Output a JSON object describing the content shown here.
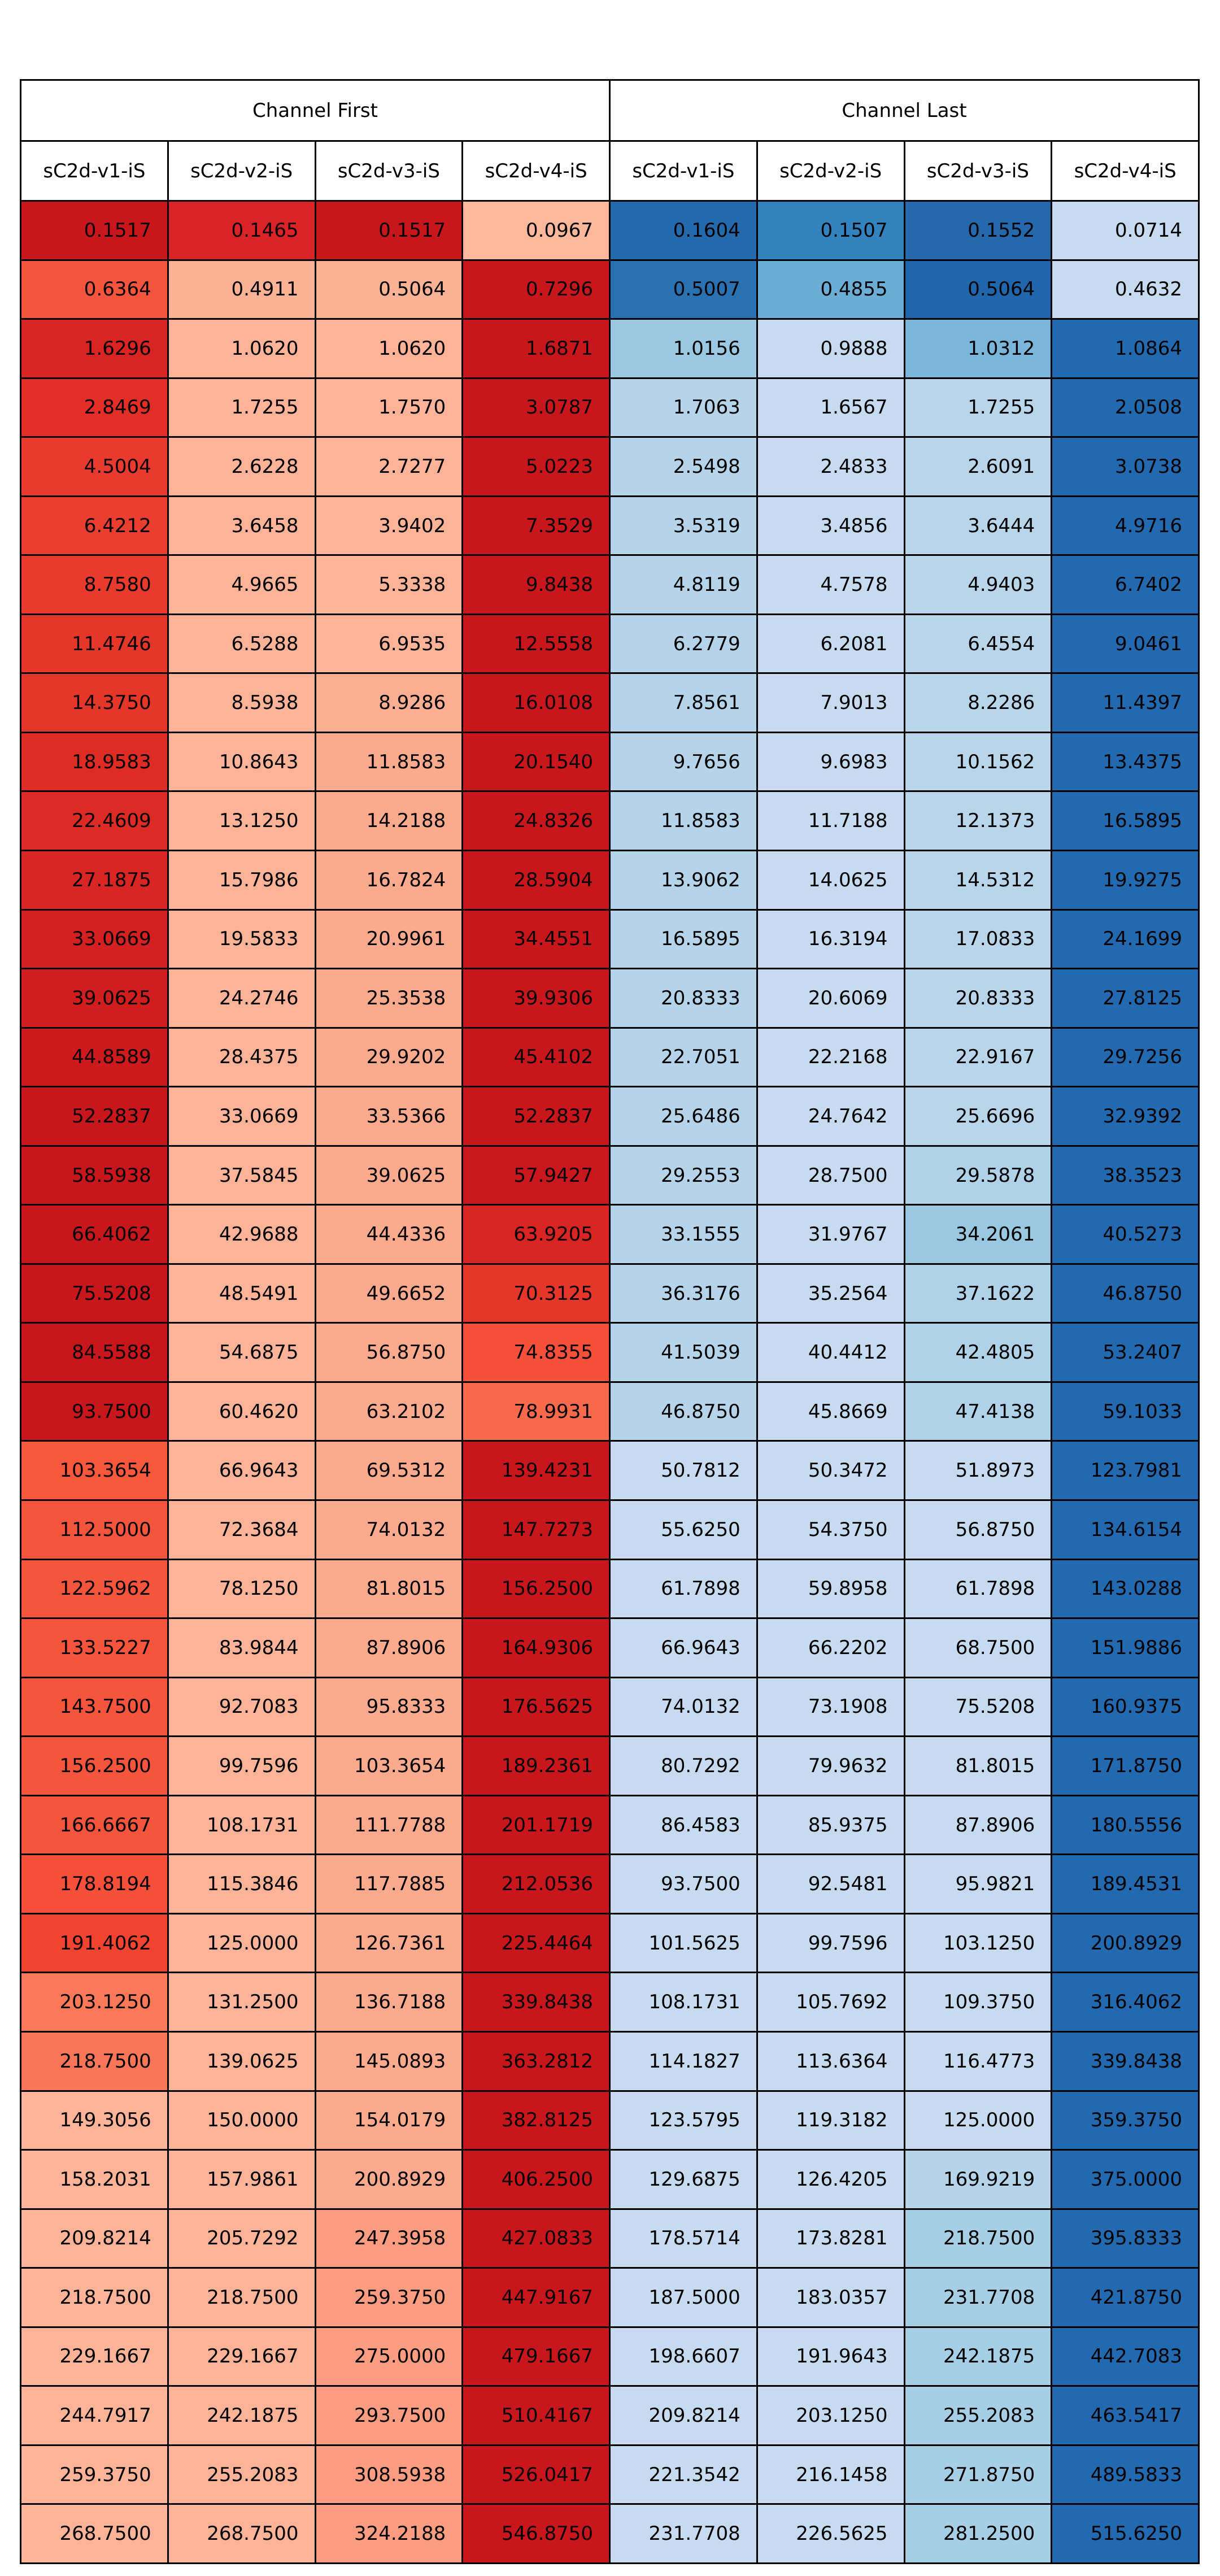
{
  "chart_data": {
    "type": "heatmap",
    "groups": [
      "Channel First",
      "Channel Last"
    ],
    "columns": [
      "sC2d-v1-iS",
      "sC2d-v2-iS",
      "sC2d-v3-iS",
      "sC2d-v4-iS",
      "sC2d-v1-iS",
      "sC2d-v2-iS",
      "sC2d-v3-iS",
      "sC2d-v4-iS"
    ],
    "colormaps": {
      "Channel First": "Reds",
      "Channel Last": "Blues"
    },
    "rows": [
      [
        "0.1517",
        "0.1465",
        "0.1517",
        "0.0967",
        "0.1604",
        "0.1507",
        "0.1552",
        "0.0714"
      ],
      [
        "0.6364",
        "0.4911",
        "0.5064",
        "0.7296",
        "0.5007",
        "0.4855",
        "0.5064",
        "0.4632"
      ],
      [
        "1.6296",
        "1.0620",
        "1.0620",
        "1.6871",
        "1.0156",
        "0.9888",
        "1.0312",
        "1.0864"
      ],
      [
        "2.8469",
        "1.7255",
        "1.7570",
        "3.0787",
        "1.7063",
        "1.6567",
        "1.7255",
        "2.0508"
      ],
      [
        "4.5004",
        "2.6228",
        "2.7277",
        "5.0223",
        "2.5498",
        "2.4833",
        "2.6091",
        "3.0738"
      ],
      [
        "6.4212",
        "3.6458",
        "3.9402",
        "7.3529",
        "3.5319",
        "3.4856",
        "3.6444",
        "4.9716"
      ],
      [
        "8.7580",
        "4.9665",
        "5.3338",
        "9.8438",
        "4.8119",
        "4.7578",
        "4.9403",
        "6.7402"
      ],
      [
        "11.4746",
        "6.5288",
        "6.9535",
        "12.5558",
        "6.2779",
        "6.2081",
        "6.4554",
        "9.0461"
      ],
      [
        "14.3750",
        "8.5938",
        "8.9286",
        "16.0108",
        "7.8561",
        "7.9013",
        "8.2286",
        "11.4397"
      ],
      [
        "18.9583",
        "10.8643",
        "11.8583",
        "20.1540",
        "9.7656",
        "9.6983",
        "10.1562",
        "13.4375"
      ],
      [
        "22.4609",
        "13.1250",
        "14.2188",
        "24.8326",
        "11.8583",
        "11.7188",
        "12.1373",
        "16.5895"
      ],
      [
        "27.1875",
        "15.7986",
        "16.7824",
        "28.5904",
        "13.9062",
        "14.0625",
        "14.5312",
        "19.9275"
      ],
      [
        "33.0669",
        "19.5833",
        "20.9961",
        "34.4551",
        "16.5895",
        "16.3194",
        "17.0833",
        "24.1699"
      ],
      [
        "39.0625",
        "24.2746",
        "25.3538",
        "39.9306",
        "20.8333",
        "20.6069",
        "20.8333",
        "27.8125"
      ],
      [
        "44.8589",
        "28.4375",
        "29.9202",
        "45.4102",
        "22.7051",
        "22.2168",
        "22.9167",
        "29.7256"
      ],
      [
        "52.2837",
        "33.0669",
        "33.5366",
        "52.2837",
        "25.6486",
        "24.7642",
        "25.6696",
        "32.9392"
      ],
      [
        "58.5938",
        "37.5845",
        "39.0625",
        "57.9427",
        "29.2553",
        "28.7500",
        "29.5878",
        "38.3523"
      ],
      [
        "66.4062",
        "42.9688",
        "44.4336",
        "63.9205",
        "33.1555",
        "31.9767",
        "34.2061",
        "40.5273"
      ],
      [
        "75.5208",
        "48.5491",
        "49.6652",
        "70.3125",
        "36.3176",
        "35.2564",
        "37.1622",
        "46.8750"
      ],
      [
        "84.5588",
        "54.6875",
        "56.8750",
        "74.8355",
        "41.5039",
        "40.4412",
        "42.4805",
        "53.2407"
      ],
      [
        "93.7500",
        "60.4620",
        "63.2102",
        "78.9931",
        "46.8750",
        "45.8669",
        "47.4138",
        "59.1033"
      ],
      [
        "103.3654",
        "66.9643",
        "69.5312",
        "139.4231",
        "50.7812",
        "50.3472",
        "51.8973",
        "123.7981"
      ],
      [
        "112.5000",
        "72.3684",
        "74.0132",
        "147.7273",
        "55.6250",
        "54.3750",
        "56.8750",
        "134.6154"
      ],
      [
        "122.5962",
        "78.1250",
        "81.8015",
        "156.2500",
        "61.7898",
        "59.8958",
        "61.7898",
        "143.0288"
      ],
      [
        "133.5227",
        "83.9844",
        "87.8906",
        "164.9306",
        "66.9643",
        "66.2202",
        "68.7500",
        "151.9886"
      ],
      [
        "143.7500",
        "92.7083",
        "95.8333",
        "176.5625",
        "74.0132",
        "73.1908",
        "75.5208",
        "160.9375"
      ],
      [
        "156.2500",
        "99.7596",
        "103.3654",
        "189.2361",
        "80.7292",
        "79.9632",
        "81.8015",
        "171.8750"
      ],
      [
        "166.6667",
        "108.1731",
        "111.7788",
        "201.1719",
        "86.4583",
        "85.9375",
        "87.8906",
        "180.5556"
      ],
      [
        "178.8194",
        "115.3846",
        "117.7885",
        "212.0536",
        "93.7500",
        "92.5481",
        "95.9821",
        "189.4531"
      ],
      [
        "191.4062",
        "125.0000",
        "126.7361",
        "225.4464",
        "101.5625",
        "99.7596",
        "103.1250",
        "200.8929"
      ],
      [
        "203.1250",
        "131.2500",
        "136.7188",
        "339.8438",
        "108.1731",
        "105.7692",
        "109.3750",
        "316.4062"
      ],
      [
        "218.7500",
        "139.0625",
        "145.0893",
        "363.2812",
        "114.1827",
        "113.6364",
        "116.4773",
        "339.8438"
      ],
      [
        "149.3056",
        "150.0000",
        "154.0179",
        "382.8125",
        "123.5795",
        "119.3182",
        "125.0000",
        "359.3750"
      ],
      [
        "158.2031",
        "157.9861",
        "200.8929",
        "406.2500",
        "129.6875",
        "126.4205",
        "169.9219",
        "375.0000"
      ],
      [
        "209.8214",
        "205.7292",
        "247.3958",
        "427.0833",
        "178.5714",
        "173.8281",
        "218.7500",
        "395.8333"
      ],
      [
        "218.7500",
        "218.7500",
        "259.3750",
        "447.9167",
        "187.5000",
        "183.0357",
        "231.7708",
        "421.8750"
      ],
      [
        "229.1667",
        "229.1667",
        "275.0000",
        "479.1667",
        "198.6607",
        "191.9643",
        "242.1875",
        "442.7083"
      ],
      [
        "244.7917",
        "242.1875",
        "293.7500",
        "510.4167",
        "209.8214",
        "203.1250",
        "255.2083",
        "463.5417"
      ],
      [
        "259.3750",
        "255.2083",
        "308.5938",
        "526.0417",
        "221.3542",
        "216.1458",
        "271.8750",
        "489.5833"
      ],
      [
        "268.7500",
        "268.7500",
        "324.2188",
        "546.8750",
        "231.7708",
        "226.5625",
        "281.2500",
        "515.6250"
      ]
    ],
    "colors": [
      [
        "#c8171c",
        "#da2327",
        "#c8171c",
        "#fcb89b",
        "#2569ad",
        "#3282be",
        "#2568ab",
        "#c6dbef"
      ],
      [
        "#f5553d",
        "#fcb295",
        "#fcb295",
        "#c8171c",
        "#2a71b2",
        "#6aaed6",
        "#2066ac",
        "#c6dbef"
      ],
      [
        "#d82422",
        "#fcb398",
        "#fcb398",
        "#c8171c",
        "#9ac8e1",
        "#c6dbef",
        "#7ab6d9",
        "#2369b0"
      ],
      [
        "#e22e27",
        "#fcb398",
        "#fcb398",
        "#c8171c",
        "#b5d4e9",
        "#c6dbef",
        "#b8d5ea",
        "#2369b0"
      ],
      [
        "#e93a2f",
        "#fcb398",
        "#fcb398",
        "#c8171c",
        "#b5d4e9",
        "#c6dbef",
        "#b8d5ea",
        "#2369b0"
      ],
      [
        "#ea3e30",
        "#fcb398",
        "#fcb398",
        "#c8171c",
        "#b5d4e9",
        "#c6dbef",
        "#b8d5ea",
        "#2369b0"
      ],
      [
        "#e83b2e",
        "#fcb398",
        "#fcb398",
        "#c8171c",
        "#b5d4e9",
        "#c6dbef",
        "#b8d5ea",
        "#2369b0"
      ],
      [
        "#e43629",
        "#fcb398",
        "#fcb398",
        "#c8171c",
        "#b5d4e9",
        "#c6dbef",
        "#b8d5ea",
        "#2369b0"
      ],
      [
        "#e43629",
        "#fcb398",
        "#fcae93",
        "#c8171c",
        "#b5d4e9",
        "#c6dbef",
        "#b8d5ea",
        "#2369b0"
      ],
      [
        "#de2c25",
        "#fcb398",
        "#fcaa8e",
        "#c8171c",
        "#b5d4e9",
        "#c6dbef",
        "#b8d5ea",
        "#2369b0"
      ],
      [
        "#dc2a24",
        "#fcb398",
        "#fcaa8e",
        "#c8171c",
        "#b5d4e9",
        "#c6dbef",
        "#b8d5ea",
        "#2369b0"
      ],
      [
        "#d92523",
        "#fcb398",
        "#fcaa8e",
        "#c8171c",
        "#b5d4e9",
        "#c6dbef",
        "#b8d5ea",
        "#2369b0"
      ],
      [
        "#d42020",
        "#fcb398",
        "#fcaa8e",
        "#c8171c",
        "#b5d4e9",
        "#c6dbef",
        "#b8d5ea",
        "#2369b0"
      ],
      [
        "#d01d1e",
        "#fcb398",
        "#fcaa8e",
        "#c8171c",
        "#b5d4e9",
        "#c6dbef",
        "#b8d5ea",
        "#2369b0"
      ],
      [
        "#cc1a1d",
        "#fcb398",
        "#fcaa8e",
        "#c8171c",
        "#b5d4e9",
        "#c6dbef",
        "#b8d5ea",
        "#2369b0"
      ],
      [
        "#c8171c",
        "#fcb398",
        "#fcaa8e",
        "#c8171c",
        "#b5d4e9",
        "#c6dbef",
        "#b8d5ea",
        "#2369b0"
      ],
      [
        "#c8171c",
        "#fcb398",
        "#fcaa8e",
        "#c9181d",
        "#b5d4e9",
        "#c6dbef",
        "#b0d2e8",
        "#2369b0"
      ],
      [
        "#c8171c",
        "#fcb398",
        "#fcaa8e",
        "#d82422",
        "#b5d4e9",
        "#c6dbef",
        "#9ac8e1",
        "#2369b0"
      ],
      [
        "#c8171c",
        "#fcb398",
        "#fcaa8e",
        "#e43629",
        "#b5d4e9",
        "#c6dbef",
        "#b0d2e8",
        "#2369b0"
      ],
      [
        "#c8171c",
        "#fcb398",
        "#fcaa8e",
        "#f4503a",
        "#b5d4e9",
        "#c6dbef",
        "#b0d2e8",
        "#2369b0"
      ],
      [
        "#c8171c",
        "#fcb398",
        "#fcaa8e",
        "#f96a4d",
        "#b5d4e9",
        "#c6dbef",
        "#b0d2e8",
        "#2369b0"
      ],
      [
        "#f6583e",
        "#fcb398",
        "#fcaa8e",
        "#c8171c",
        "#c6dbef",
        "#c6dbef",
        "#c6dbef",
        "#2369b0"
      ],
      [
        "#f5553d",
        "#fcb398",
        "#fcaa8e",
        "#c8171c",
        "#c6dbef",
        "#c6dbef",
        "#c6dbef",
        "#2369b0"
      ],
      [
        "#f5553d",
        "#fcb398",
        "#fcaa8e",
        "#c8171c",
        "#c6dbef",
        "#c6dbef",
        "#c6dbef",
        "#2369b0"
      ],
      [
        "#f5553d",
        "#fcb398",
        "#fcaa8e",
        "#c8171c",
        "#c6dbef",
        "#c6dbef",
        "#c6dbef",
        "#2369b0"
      ],
      [
        "#f5553d",
        "#fcb398",
        "#fcaa8e",
        "#c8171c",
        "#c6dbef",
        "#c6dbef",
        "#c6dbef",
        "#2369b0"
      ],
      [
        "#f5553d",
        "#fcb398",
        "#fcaa8e",
        "#c8171c",
        "#c6dbef",
        "#c6dbef",
        "#c6dbef",
        "#2369b0"
      ],
      [
        "#f5553d",
        "#fcb398",
        "#fcaa8e",
        "#c8171c",
        "#c6dbef",
        "#c6dbef",
        "#c6dbef",
        "#2369b0"
      ],
      [
        "#f4503a",
        "#fcb398",
        "#fcaa8e",
        "#c8171c",
        "#c6dbef",
        "#c6dbef",
        "#c6dbef",
        "#2369b0"
      ],
      [
        "#f14430",
        "#fcb398",
        "#fcaa8e",
        "#c8171c",
        "#c6dbef",
        "#c6dbef",
        "#c6dbef",
        "#2369b0"
      ],
      [
        "#fb7858",
        "#fcb398",
        "#fcaa8e",
        "#c8171c",
        "#c6dbef",
        "#c6dbef",
        "#c6dbef",
        "#2369b0"
      ],
      [
        "#fb7656",
        "#fcb398",
        "#fcaa8e",
        "#c8171c",
        "#c6dbef",
        "#c6dbef",
        "#c6dbef",
        "#2369b0"
      ],
      [
        "#fcb398",
        "#fcb398",
        "#fcaa8e",
        "#c8171c",
        "#c6dbef",
        "#c6dbef",
        "#c6dbef",
        "#2369b0"
      ],
      [
        "#fcb398",
        "#fcb398",
        "#fcaa8e",
        "#c8171c",
        "#c6dbef",
        "#c6dbef",
        "#b5d4e9",
        "#2369b0"
      ],
      [
        "#fcb398",
        "#fcb398",
        "#fc9d82",
        "#c8171c",
        "#c6dbef",
        "#c6dbef",
        "#a6cee4",
        "#2369b0"
      ],
      [
        "#fcb398",
        "#fcb398",
        "#fc9d82",
        "#c8171c",
        "#c6dbef",
        "#c6dbef",
        "#a6cee4",
        "#2369b0"
      ],
      [
        "#fcb398",
        "#fcb398",
        "#fc9d82",
        "#c8171c",
        "#c6dbef",
        "#c6dbef",
        "#a6cee4",
        "#2369b0"
      ],
      [
        "#fcb398",
        "#fcb398",
        "#fc9d82",
        "#c8171c",
        "#c6dbef",
        "#c6dbef",
        "#a6cee4",
        "#2369b0"
      ],
      [
        "#fcb398",
        "#fcb398",
        "#fc9d82",
        "#c8171c",
        "#c6dbef",
        "#c6dbef",
        "#a6cee4",
        "#2369b0"
      ],
      [
        "#fcb398",
        "#fcb398",
        "#fc9d82",
        "#c8171c",
        "#c6dbef",
        "#c6dbef",
        "#a6cee4",
        "#2369b0"
      ]
    ]
  }
}
